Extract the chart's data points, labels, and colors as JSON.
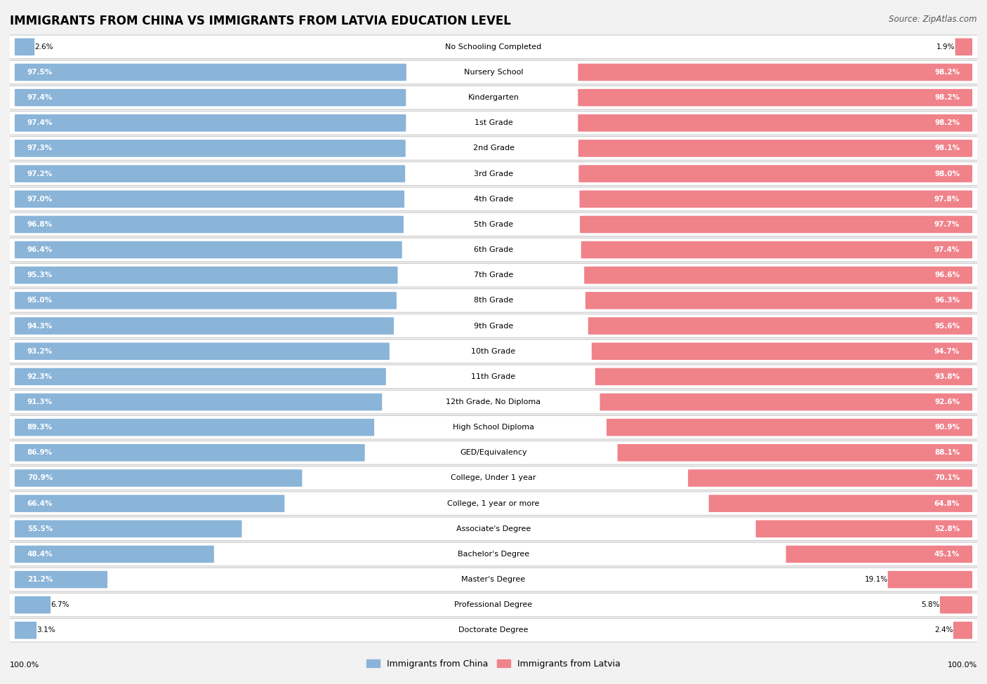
{
  "title": "IMMIGRANTS FROM CHINA VS IMMIGRANTS FROM LATVIA EDUCATION LEVEL",
  "source": "Source: ZipAtlas.com",
  "categories": [
    "No Schooling Completed",
    "Nursery School",
    "Kindergarten",
    "1st Grade",
    "2nd Grade",
    "3rd Grade",
    "4th Grade",
    "5th Grade",
    "6th Grade",
    "7th Grade",
    "8th Grade",
    "9th Grade",
    "10th Grade",
    "11th Grade",
    "12th Grade, No Diploma",
    "High School Diploma",
    "GED/Equivalency",
    "College, Under 1 year",
    "College, 1 year or more",
    "Associate's Degree",
    "Bachelor's Degree",
    "Master's Degree",
    "Professional Degree",
    "Doctorate Degree"
  ],
  "china_values": [
    2.6,
    97.5,
    97.4,
    97.4,
    97.3,
    97.2,
    97.0,
    96.8,
    96.4,
    95.3,
    95.0,
    94.3,
    93.2,
    92.3,
    91.3,
    89.3,
    86.9,
    70.9,
    66.4,
    55.5,
    48.4,
    21.2,
    6.7,
    3.1
  ],
  "latvia_values": [
    1.9,
    98.2,
    98.2,
    98.2,
    98.1,
    98.0,
    97.8,
    97.7,
    97.4,
    96.6,
    96.3,
    95.6,
    94.7,
    93.8,
    92.6,
    90.9,
    88.1,
    70.1,
    64.8,
    52.8,
    45.1,
    19.1,
    5.8,
    2.4
  ],
  "china_color": "#8ab4d8",
  "latvia_color": "#f0828a",
  "bg_color": "#f2f2f2",
  "row_bg_color": "#ffffff",
  "legend_china": "Immigrants from China",
  "legend_latvia": "Immigrants from Latvia",
  "title_fontsize": 12,
  "source_fontsize": 8.5,
  "label_fontsize": 8.0,
  "value_fontsize": 7.5
}
